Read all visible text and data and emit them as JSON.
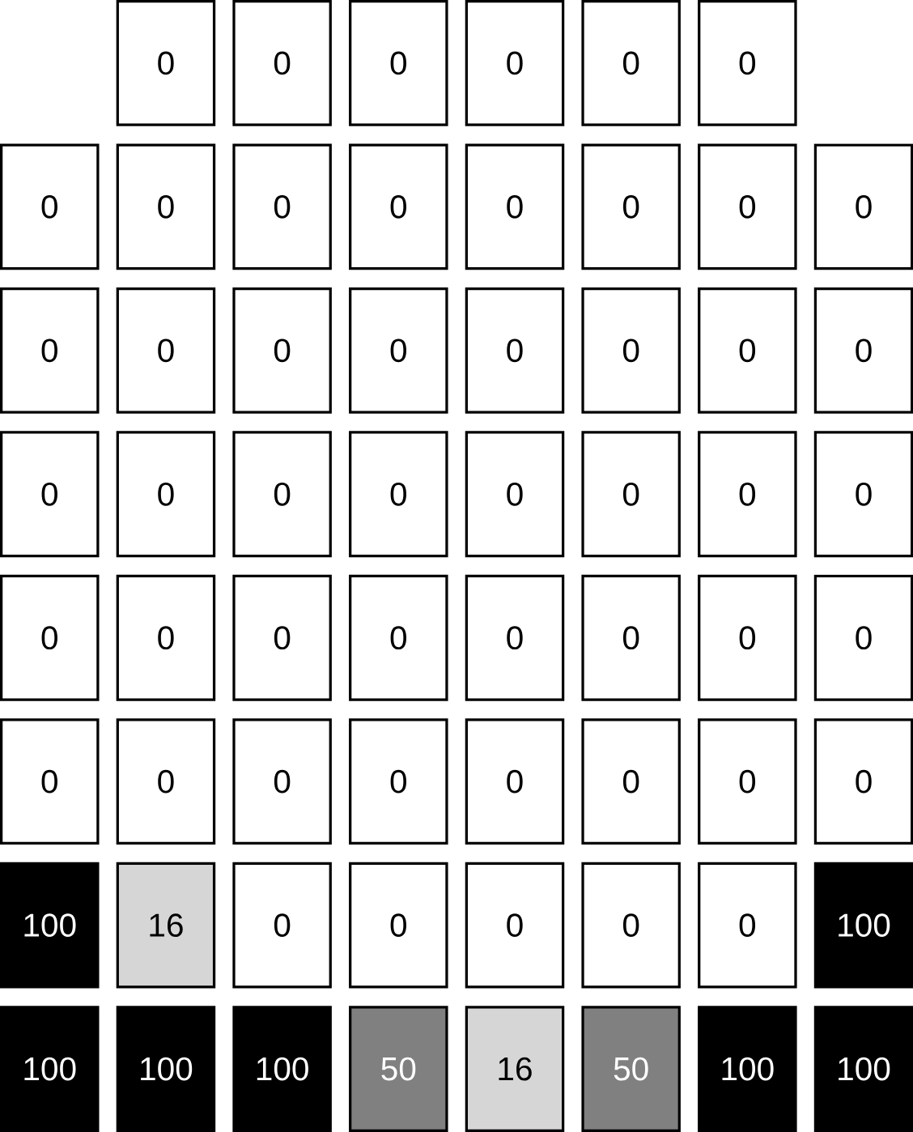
{
  "chart_data": {
    "type": "heatmap",
    "categories": [
      null,
      null,
      null,
      null,
      null,
      null,
      null,
      null
    ],
    "y_categories": [
      null,
      null,
      null,
      null,
      null,
      null,
      null,
      null
    ],
    "cells": [
      [
        null,
        0,
        0,
        0,
        0,
        0,
        0,
        null
      ],
      [
        0,
        0,
        0,
        0,
        0,
        0,
        0,
        0
      ],
      [
        0,
        0,
        0,
        0,
        0,
        0,
        0,
        0
      ],
      [
        0,
        0,
        0,
        0,
        0,
        0,
        0,
        0
      ],
      [
        0,
        0,
        0,
        0,
        0,
        0,
        0,
        0
      ],
      [
        0,
        0,
        0,
        0,
        0,
        0,
        0,
        0
      ],
      [
        100,
        16,
        0,
        0,
        0,
        0,
        0,
        100
      ],
      [
        100,
        100,
        100,
        50,
        16,
        50,
        100,
        100
      ]
    ],
    "cell_labels": [
      [
        null,
        "0",
        "0",
        "0",
        "0",
        "0",
        "0",
        null
      ],
      [
        "0",
        "0",
        "0",
        "0",
        "0",
        "0",
        "0",
        "0"
      ],
      [
        "0",
        "0",
        "0",
        "0",
        "0",
        "0",
        "0",
        "0"
      ],
      [
        "0",
        "0",
        "0",
        "0",
        "0",
        "0",
        "0",
        "0"
      ],
      [
        "0",
        "0",
        "0",
        "0",
        "0",
        "0",
        "0",
        "0"
      ],
      [
        "0",
        "0",
        "0",
        "0",
        "0",
        "0",
        "0",
        "0"
      ],
      [
        "100",
        "16",
        "0",
        "0",
        "0",
        "0",
        "0",
        "100"
      ],
      [
        "100",
        "100",
        "100",
        "50",
        "16",
        "50",
        "100",
        "100"
      ]
    ]
  }
}
